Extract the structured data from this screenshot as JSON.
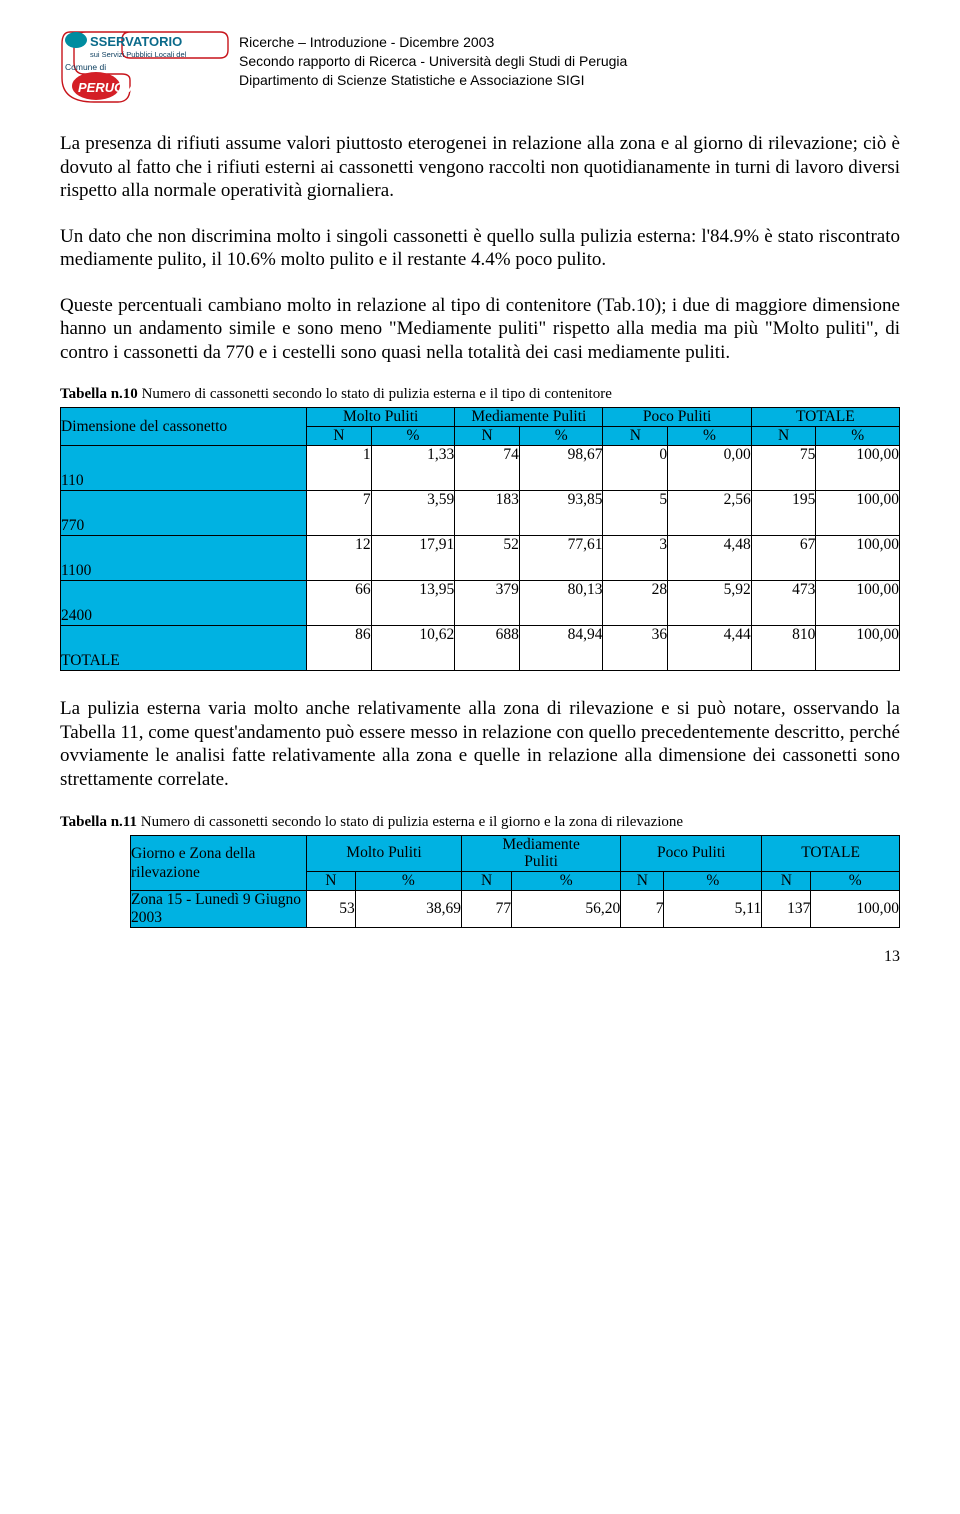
{
  "header": {
    "line1": "Ricerche – Introduzione - Dicembre  2003",
    "line2": "Secondo rapporto di Ricerca - Università degli Studi di Perugia",
    "line3": "Dipartimento di Scienze Statistiche e Associazione SIGI"
  },
  "logo": {
    "top": "SSERVATORIO",
    "sub": "sui Servizi Pubblici Locali del",
    "comune": "Comune di",
    "city": "PERUGIA",
    "colors": {
      "teal": "#008ca0",
      "red": "#d41f26",
      "outline": "#c7131a",
      "text_dark": "#0a3c5d"
    }
  },
  "paras": {
    "p1": "La presenza di rifiuti assume valori piuttosto eterogenei in relazione alla zona e al giorno di rilevazione; ciò è dovuto al fatto che i rifiuti esterni ai cassonetti vengono raccolti non quotidianamente in turni di lavoro diversi rispetto alla normale operatività giornaliera.",
    "p2": "Un dato che non discrimina molto i singoli cassonetti è quello sulla pulizia esterna: l'84.9% è stato riscontrato mediamente pulito, il 10.6% molto pulito e il restante 4.4% poco pulito.",
    "p3": "Queste percentuali cambiano molto in relazione al tipo di contenitore (Tab.10); i due di maggiore dimensione hanno un andamento simile e sono meno \"Mediamente puliti\" rispetto alla media ma più \"Molto puliti\", di contro i cassonetti da 770 e i cestelli sono quasi nella totalità dei casi mediamente puliti.",
    "p4": "La pulizia esterna varia molto anche relativamente alla zona di rilevazione e si può notare, osservando la Tabella 11, come quest'andamento può essere messo in relazione con quello precedentemente descritto, perché ovviamente le analisi fatte relativamente alla zona e quelle in relazione alla dimensione dei cassonetti sono strettamente correlate."
  },
  "table10": {
    "caption_bold": "Tabella n.10",
    "caption_rest": " Numero di cassonetti secondo lo stato di pulizia esterna e il tipo di contenitore",
    "dim_label": "Dimensione del cassonetto",
    "groups": [
      "Molto Puliti",
      "Mediamente Puliti",
      "Poco Puliti",
      "TOTALE"
    ],
    "sub": [
      "N",
      "%"
    ],
    "header_bg": "#00b2e2",
    "rows": [
      {
        "label": "110",
        "cells": [
          "1",
          "1,33",
          "74",
          "98,67",
          "0",
          "0,00",
          "75",
          "100,00"
        ]
      },
      {
        "label": "770",
        "cells": [
          "7",
          "3,59",
          "183",
          "93,85",
          "5",
          "2,56",
          "195",
          "100,00"
        ]
      },
      {
        "label": "1100",
        "cells": [
          "12",
          "17,91",
          "52",
          "77,61",
          "3",
          "4,48",
          "67",
          "100,00"
        ]
      },
      {
        "label": "2400",
        "cells": [
          "66",
          "13,95",
          "379",
          "80,13",
          "28",
          "5,92",
          "473",
          "100,00"
        ]
      },
      {
        "label": "TOTALE",
        "cells": [
          "86",
          "10,62",
          "688",
          "84,94",
          "36",
          "4,44",
          "810",
          "100,00"
        ]
      }
    ]
  },
  "table11": {
    "caption_bold": "Tabella n.11",
    "caption_rest": " Numero di cassonetti secondo lo stato di pulizia esterna e il giorno e la zona di rilevazione",
    "dim_label": "Giorno e Zona della rilevazione",
    "groups": [
      "Molto Puliti",
      "Mediamente Puliti",
      "Poco Puliti",
      "TOTALE"
    ],
    "sub": [
      "N",
      "%"
    ],
    "rows": [
      {
        "label": "Zona 15 - Lunedì 9 Giugno 2003",
        "cells": [
          "53",
          "38,69",
          "77",
          "56,20",
          "7",
          "5,11",
          "137",
          "100,00"
        ]
      }
    ]
  },
  "page_number": "13"
}
